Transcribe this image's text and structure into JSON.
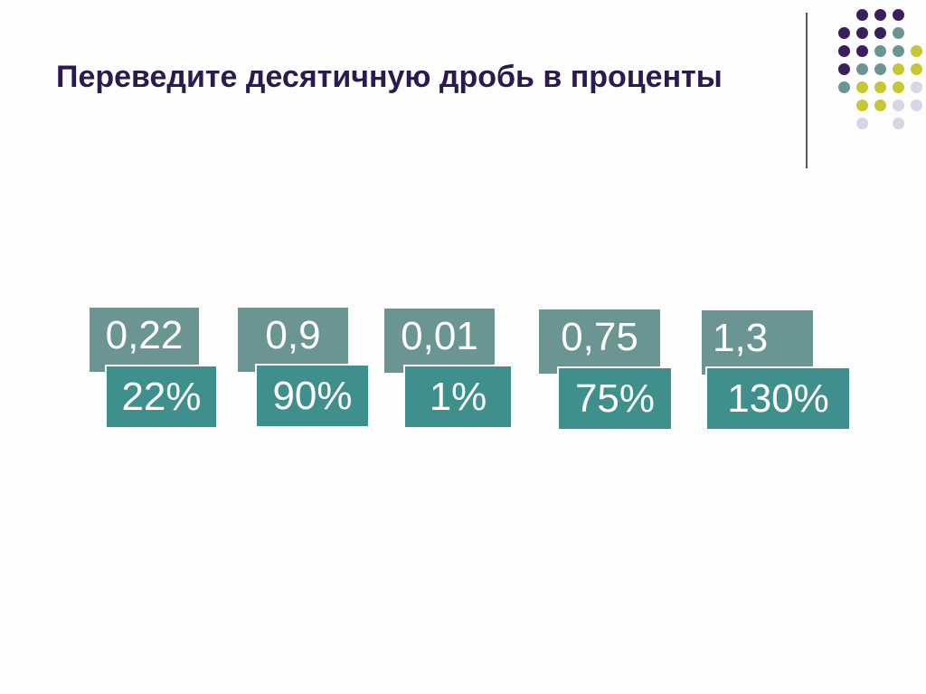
{
  "slide": {
    "title": "Переведите десятичную дробь в проценты"
  },
  "colors": {
    "title": "#2b1a4e",
    "decimal_card": "#6b9593",
    "percent_card": "#3f908c",
    "dot_purple": "#3a1f5d",
    "dot_teal": "#6b9593",
    "dot_lime": "#c5c832",
    "dot_lavender": "#d6d6e6"
  },
  "pairs": [
    {
      "decimal": "0,22",
      "percent": "22%"
    },
    {
      "decimal": "0,9",
      "percent": "90%"
    },
    {
      "decimal": "0,01",
      "percent": "1%"
    },
    {
      "decimal": "0,75",
      "percent": "75%"
    },
    {
      "decimal": "1,3",
      "percent": "130%"
    }
  ]
}
